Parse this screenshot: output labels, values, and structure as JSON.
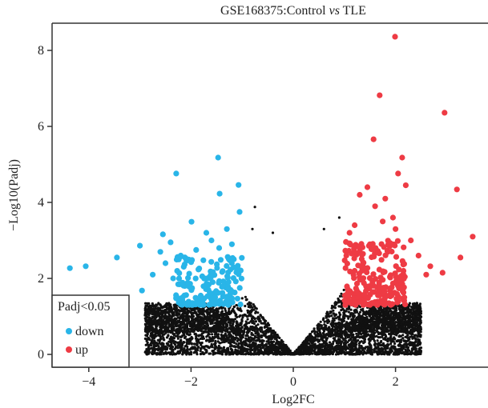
{
  "chart_data": {
    "type": "scatter",
    "title_prefix": "GSE168375:Control ",
    "title_italic": "vs",
    "title_suffix": " TLE",
    "xlabel": "Log2FC",
    "ylabel": "−Log10(Padj)",
    "xlim": [
      -4.7,
      3.8
    ],
    "ylim": [
      -0.35,
      8.7
    ],
    "xticks": [
      -4,
      -2,
      0,
      2
    ],
    "xtick_labels": [
      "−4",
      "−2",
      "0",
      "2"
    ],
    "yticks": [
      0,
      2,
      4,
      6,
      8
    ],
    "ytick_labels": [
      "0",
      "2",
      "4",
      "6",
      "8"
    ],
    "grid": false,
    "legend": {
      "title": "Padj<0.05",
      "placement": "bottom-left",
      "entries": [
        {
          "label": "down",
          "color": "#29b5e8"
        },
        {
          "label": "up",
          "color": "#ee3b44"
        }
      ]
    },
    "colors": {
      "up": "#ee3b44",
      "down": "#29b5e8",
      "ns": "#111111"
    },
    "series": [
      {
        "name": "up",
        "points": [
          [
            1.99,
            8.36
          ],
          [
            1.69,
            6.82
          ],
          [
            2.96,
            6.36
          ],
          [
            1.57,
            5.66
          ],
          [
            2.13,
            5.18
          ],
          [
            2.05,
            4.76
          ],
          [
            3.2,
            4.34
          ],
          [
            3.51,
            3.1
          ],
          [
            3.27,
            2.55
          ],
          [
            2.92,
            2.15
          ],
          [
            2.68,
            2.32
          ],
          [
            1.45,
            4.4
          ],
          [
            1.8,
            4.1
          ],
          [
            2.2,
            4.45
          ],
          [
            1.3,
            4.2
          ],
          [
            1.6,
            3.9
          ],
          [
            1.95,
            3.6
          ],
          [
            1.2,
            3.4
          ],
          [
            1.75,
            3.5
          ],
          [
            2.0,
            3.3
          ],
          [
            1.1,
            3.2
          ],
          [
            2.3,
            3.0
          ],
          [
            1.5,
            2.9
          ],
          [
            2.45,
            2.6
          ],
          [
            1.85,
            2.7
          ],
          [
            2.6,
            2.1
          ]
        ],
        "cluster": {
          "n": 230,
          "xrange": [
            1.0,
            2.2
          ],
          "yrange": [
            1.3,
            3.0
          ]
        }
      },
      {
        "name": "down",
        "points": [
          [
            -1.47,
            5.18
          ],
          [
            -2.29,
            4.76
          ],
          [
            -1.07,
            4.46
          ],
          [
            -1.44,
            4.23
          ],
          [
            -1.05,
            3.75
          ],
          [
            -1.99,
            3.49
          ],
          [
            -2.55,
            3.16
          ],
          [
            -3.0,
            2.86
          ],
          [
            -3.45,
            2.55
          ],
          [
            -4.06,
            2.32
          ],
          [
            -4.37,
            2.27
          ],
          [
            -2.96,
            1.68
          ],
          [
            -1.3,
            3.3
          ],
          [
            -1.7,
            3.2
          ],
          [
            -2.4,
            2.95
          ],
          [
            -1.6,
            3.0
          ],
          [
            -1.2,
            2.9
          ],
          [
            -2.6,
            2.7
          ],
          [
            -1.9,
            2.75
          ],
          [
            -2.2,
            2.6
          ],
          [
            -1.45,
            2.8
          ],
          [
            -2.5,
            2.4
          ],
          [
            -2.75,
            2.1
          ],
          [
            -2.35,
            2.0
          ]
        ],
        "cluster": {
          "n": 170,
          "xrange": [
            -2.3,
            -1.0
          ],
          "yrange": [
            1.3,
            2.6
          ]
        }
      },
      {
        "name": "ns",
        "points": [
          [
            -0.75,
            3.88
          ],
          [
            -0.4,
            3.2
          ],
          [
            0.9,
            3.6
          ],
          [
            -0.8,
            3.3
          ],
          [
            0.6,
            3.3
          ]
        ],
        "cluster": {
          "n": 5200,
          "xrange": [
            -2.9,
            2.5
          ],
          "yrange": [
            0,
            3.0
          ]
        }
      }
    ]
  }
}
